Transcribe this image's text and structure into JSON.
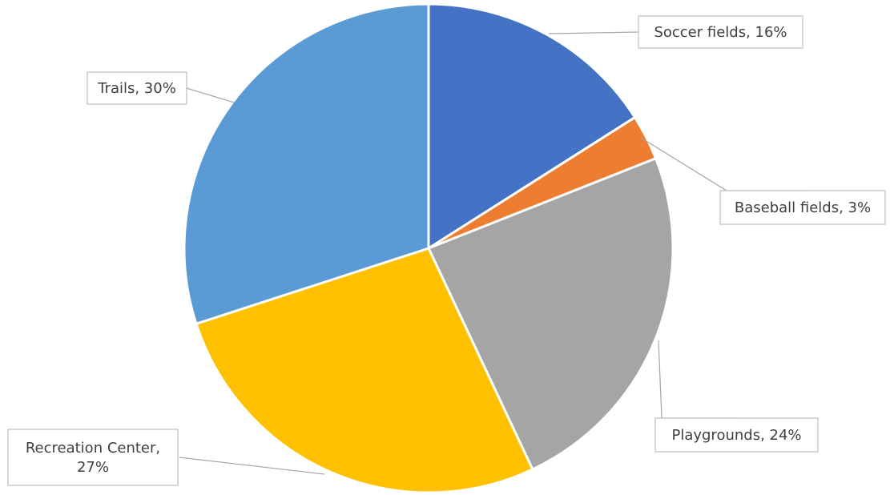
{
  "chart_data": {
    "type": "pie",
    "slices": [
      {
        "label": "Soccer fields",
        "value": 16,
        "display": "Soccer fields, 16%",
        "color": "#4472C4"
      },
      {
        "label": "Baseball fields",
        "value": 3,
        "display": "Baseball fields, 3%",
        "color": "#ED7D31"
      },
      {
        "label": "Playgrounds",
        "value": 24,
        "display": "Playgrounds, 24%",
        "color": "#A5A5A5"
      },
      {
        "label": "Recreation Center",
        "value": 27,
        "display_lines": [
          "Recreation Center,",
          "27%"
        ],
        "color": "#FFC000"
      },
      {
        "label": "Trails",
        "value": 30,
        "display": "Trails, 30%",
        "color": "#5B9BD5"
      }
    ]
  }
}
